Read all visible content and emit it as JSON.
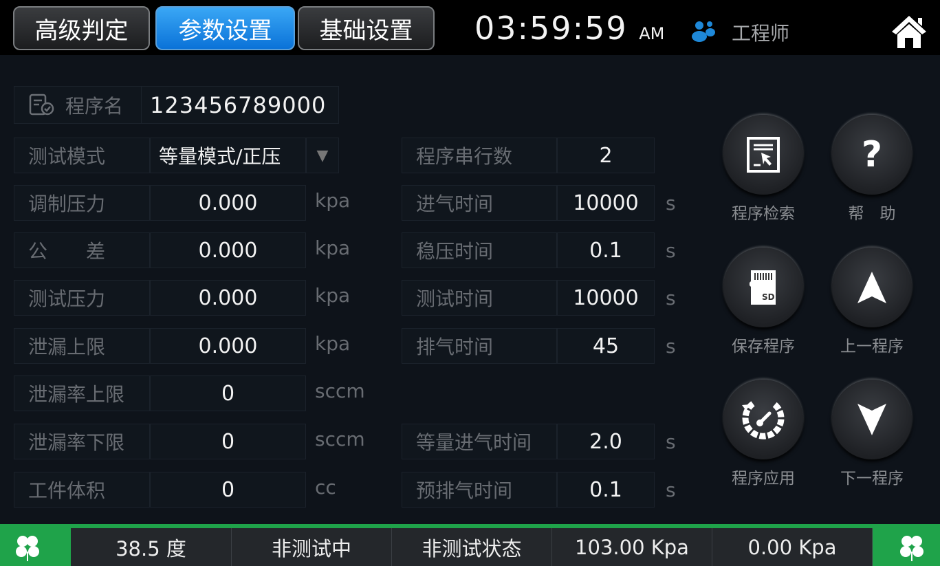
{
  "tabs": [
    {
      "label": "高级判定"
    },
    {
      "label": "参数设置",
      "active": true
    },
    {
      "label": "基础设置"
    }
  ],
  "clock": {
    "time": "03:59:59",
    "ampm": "AM"
  },
  "user": {
    "role": "工程师",
    "icon": "users-icon",
    "icon_color": "#1e88d8"
  },
  "home_icon": "home-icon",
  "program": {
    "label": "程序名",
    "value": "123456789000",
    "icon": "document-check-icon"
  },
  "mode": {
    "label": "测试模式",
    "value": "等量模式/正压"
  },
  "left_rows": [
    {
      "label": "调制压力",
      "value": "0.000",
      "unit": "kpa"
    },
    {
      "label": "公　　差",
      "value": "0.000",
      "unit": "kpa"
    },
    {
      "label": "测试压力",
      "value": "0.000",
      "unit": "kpa"
    },
    {
      "label": "泄漏上限",
      "value": "0.000",
      "unit": "kpa"
    },
    {
      "label": "泄漏率上限",
      "value": "0",
      "unit": "sccm"
    },
    {
      "label": "泄漏率下限",
      "value": "0",
      "unit": "sccm"
    },
    {
      "label": "工件体积",
      "value": "0",
      "unit": "cc"
    }
  ],
  "right_rows": [
    {
      "label": "程序串行数",
      "value": "2",
      "unit": ""
    },
    {
      "label": "进气时间",
      "value": "10000",
      "unit": "s"
    },
    {
      "label": "稳压时间",
      "value": "0.1",
      "unit": "s"
    },
    {
      "label": "测试时间",
      "value": "10000",
      "unit": "s"
    },
    {
      "label": "排气时间",
      "value": "45",
      "unit": "s"
    },
    {
      "label": "等量进气时间",
      "value": "2.0",
      "unit": "s"
    },
    {
      "label": "预排气时间",
      "value": "0.1",
      "unit": "s"
    }
  ],
  "buttons": [
    {
      "label": "程序检索",
      "icon": "program-search-icon"
    },
    {
      "label": "帮　助",
      "icon": "help-icon"
    },
    {
      "label": "保存程序",
      "icon": "sd-card-icon",
      "icon_text": "SD"
    },
    {
      "label": "上一程序",
      "icon": "arrow-up-icon"
    },
    {
      "label": "程序应用",
      "icon": "apply-gauge-icon"
    },
    {
      "label": "下一程序",
      "icon": "arrow-down-icon"
    }
  ],
  "status": [
    "38.5 度",
    "非测试中",
    "非测试状态",
    "103.00 Kpa",
    "0.00 Kpa"
  ],
  "status_color": "#1fa34a"
}
